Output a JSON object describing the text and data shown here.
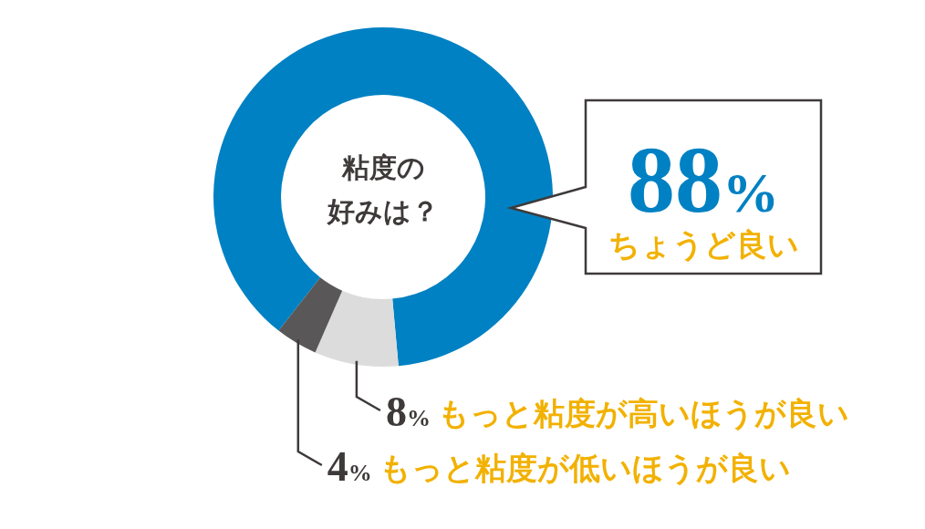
{
  "chart_data": {
    "type": "donut",
    "title": "粘度の好みは？",
    "categories": [
      "ちょうど良い",
      "もっと粘度が高いほうが良い",
      "もっと粘度が低いほうが良い"
    ],
    "values": [
      88,
      8,
      4
    ],
    "colors": [
      "#0081c3",
      "#dcdcdc",
      "#595757"
    ],
    "value_labels": [
      "88%",
      "8%",
      "4%"
    ]
  }
}
